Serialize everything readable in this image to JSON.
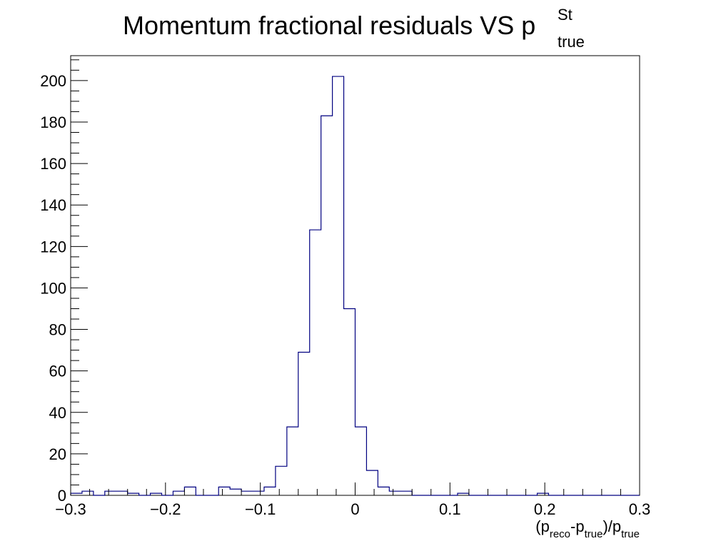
{
  "chart_data": {
    "type": "histogram",
    "title": {
      "main": "Momentum fractional residuals VS p",
      "superscript": "St",
      "subscript": "true"
    },
    "xlabel": {
      "open": "(p",
      "sub1": "reco",
      "mid": "-p",
      "sub2": "true",
      "close": ")/p",
      "sub3": "true"
    },
    "ylabel": "",
    "xlim": [
      -0.3,
      0.3
    ],
    "ylim": [
      0,
      212
    ],
    "x_ticks": [
      -0.3,
      -0.2,
      -0.1,
      0,
      0.1,
      0.2,
      0.3
    ],
    "x_tick_labels": [
      "−0.3",
      "−0.2",
      "−0.1",
      "0",
      "0.1",
      "0.2",
      "0.3"
    ],
    "y_ticks": [
      0,
      20,
      40,
      60,
      80,
      100,
      120,
      140,
      160,
      180,
      200
    ],
    "y_tick_labels": [
      "0",
      "20",
      "40",
      "60",
      "80",
      "100",
      "120",
      "140",
      "160",
      "180",
      "200"
    ],
    "bin_width": 0.012,
    "bin_edges_start": -0.3,
    "values": [
      1,
      2,
      0,
      2,
      2,
      1,
      0,
      1,
      0,
      2,
      4,
      0,
      0,
      4,
      3,
      2,
      2,
      4,
      14,
      33,
      69,
      128,
      183,
      202,
      90,
      33,
      12,
      4,
      2,
      2,
      0,
      0,
      0,
      0,
      1,
      0,
      0,
      0,
      0,
      0,
      0,
      1,
      0,
      0,
      0,
      0,
      0,
      0,
      0,
      0
    ],
    "line_color": "#000080",
    "grid": false,
    "legend": "none"
  }
}
